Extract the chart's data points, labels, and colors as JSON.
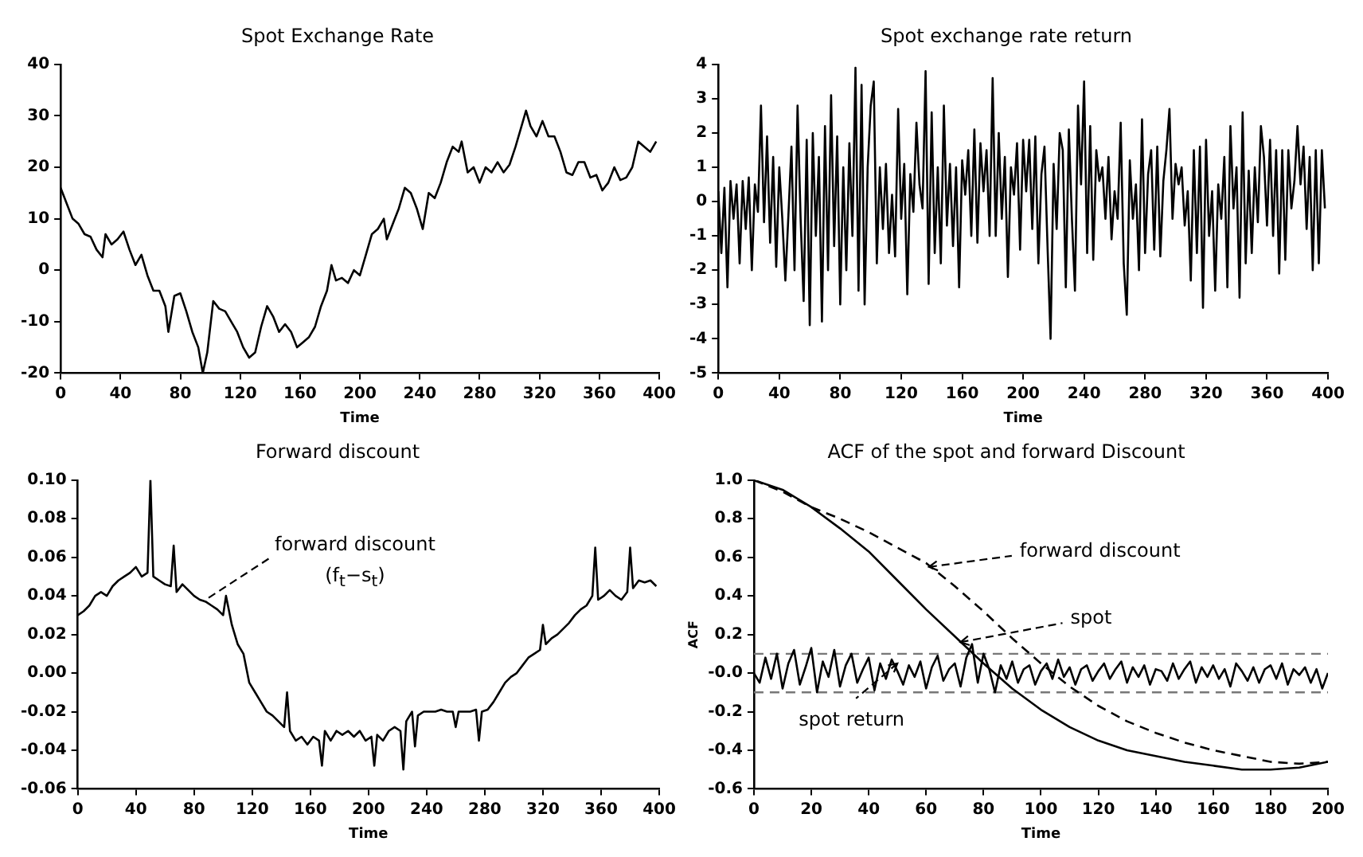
{
  "chart_data": [
    {
      "type": "line",
      "title": "Spot Exchange Rate",
      "xlabel": "Time",
      "xlim": [
        0,
        400
      ],
      "xticks": [
        0,
        40,
        80,
        120,
        160,
        200,
        240,
        280,
        320,
        360,
        400
      ],
      "ylim": [
        -20,
        40
      ],
      "yticks": [
        -20,
        -10,
        0,
        10,
        20,
        30,
        40
      ],
      "x": [
        0,
        4,
        8,
        12,
        16,
        20,
        24,
        28,
        30,
        34,
        38,
        42,
        46,
        50,
        54,
        58,
        62,
        66,
        70,
        72,
        76,
        80,
        84,
        88,
        92,
        95,
        98,
        102,
        106,
        110,
        114,
        118,
        122,
        126,
        130,
        134,
        138,
        142,
        146,
        150,
        154,
        158,
        162,
        166,
        170,
        174,
        178,
        181,
        184,
        188,
        192,
        196,
        200,
        204,
        208,
        212,
        216,
        218,
        222,
        226,
        230,
        234,
        238,
        242,
        246,
        250,
        254,
        258,
        262,
        266,
        268,
        272,
        276,
        280,
        284,
        288,
        292,
        296,
        300,
        304,
        308,
        311,
        314,
        318,
        322,
        326,
        330,
        334,
        338,
        342,
        346,
        350,
        354,
        358,
        362,
        366,
        370,
        374,
        378,
        382,
        386,
        390,
        394,
        398
      ],
      "series": [
        {
          "color": "#000000",
          "values": [
            16,
            13,
            10,
            9,
            7,
            6.5,
            4,
            2.5,
            7,
            5,
            6,
            7.5,
            4,
            1,
            3,
            -1,
            -4,
            -4,
            -7,
            -12,
            -5,
            -4.5,
            -8,
            -12,
            -15,
            -20,
            -16,
            -6,
            -7.5,
            -8,
            -10,
            -12,
            -15,
            -17,
            -16,
            -11,
            -7,
            -9,
            -12,
            -10.5,
            -12,
            -15,
            -14,
            -13,
            -11,
            -7,
            -4,
            1,
            -2,
            -1.5,
            -2.5,
            0,
            -1,
            3,
            7,
            8,
            10,
            6,
            9,
            12,
            16,
            15,
            12,
            8,
            15,
            14,
            17,
            21,
            24,
            23,
            25,
            19,
            20,
            17,
            20,
            19,
            21,
            19,
            20.5,
            24,
            28,
            31,
            28,
            26,
            29,
            26,
            26,
            23,
            19,
            18.5,
            21,
            21,
            18,
            18.5,
            15.5,
            17,
            20,
            17.5,
            18,
            20,
            25,
            24,
            23,
            25
          ]
        }
      ]
    },
    {
      "type": "line",
      "title": "Spot exchange rate return",
      "xlabel": "Time",
      "xlim": [
        0,
        400
      ],
      "xticks": [
        0,
        40,
        80,
        120,
        160,
        200,
        240,
        280,
        320,
        360,
        400
      ],
      "ylim": [
        -5,
        4
      ],
      "yticks": [
        -5,
        -4,
        -3,
        -2,
        -1,
        0,
        1,
        2,
        3,
        4
      ],
      "x": [
        0,
        2,
        4,
        6,
        8,
        10,
        12,
        14,
        16,
        18,
        20,
        22,
        24,
        26,
        28,
        30,
        32,
        34,
        36,
        38,
        40,
        42,
        44,
        46,
        48,
        50,
        52,
        54,
        56,
        58,
        60,
        62,
        64,
        66,
        68,
        70,
        72,
        74,
        76,
        78,
        80,
        82,
        84,
        86,
        88,
        90,
        92,
        94,
        96,
        98,
        100,
        102,
        104,
        106,
        108,
        110,
        112,
        114,
        116,
        118,
        120,
        122,
        124,
        126,
        128,
        130,
        132,
        134,
        136,
        138,
        140,
        142,
        144,
        146,
        148,
        150,
        152,
        154,
        156,
        158,
        160,
        162,
        164,
        166,
        168,
        170,
        172,
        174,
        176,
        178,
        180,
        182,
        184,
        186,
        188,
        190,
        192,
        194,
        196,
        198,
        200,
        202,
        204,
        206,
        208,
        210,
        212,
        214,
        216,
        218,
        220,
        222,
        224,
        226,
        228,
        230,
        232,
        234,
        236,
        238,
        240,
        242,
        244,
        246,
        248,
        250,
        252,
        254,
        256,
        258,
        260,
        262,
        264,
        266,
        268,
        270,
        272,
        274,
        276,
        278,
        280,
        282,
        284,
        286,
        288,
        290,
        292,
        294,
        296,
        298,
        300,
        302,
        304,
        306,
        308,
        310,
        312,
        314,
        316,
        318,
        320,
        322,
        324,
        326,
        328,
        330,
        332,
        334,
        336,
        338,
        340,
        342,
        344,
        346,
        348,
        350,
        352,
        354,
        356,
        358,
        360,
        362,
        364,
        366,
        368,
        370,
        372,
        374,
        376,
        378,
        380,
        382,
        384,
        386,
        388,
        390,
        392,
        394,
        396,
        398
      ],
      "series": [
        {
          "color": "#000000",
          "values": [
            0.3,
            -1.5,
            0.4,
            -2.5,
            0.6,
            -0.5,
            0.5,
            -1.8,
            0.6,
            -0.8,
            0.7,
            -2.0,
            0.5,
            -0.3,
            2.8,
            -0.6,
            1.9,
            -1.2,
            1.3,
            -1.9,
            1.0,
            -0.5,
            -2.3,
            -0.4,
            1.6,
            -2.0,
            2.8,
            -0.5,
            -2.9,
            1.8,
            -3.6,
            2.0,
            -1.0,
            1.3,
            -3.5,
            2.2,
            -2.0,
            3.1,
            -1.3,
            1.9,
            -3.0,
            1.0,
            -2.0,
            1.7,
            -1.0,
            3.9,
            -2.6,
            3.4,
            -3.0,
            1.0,
            2.8,
            3.5,
            -1.8,
            1.0,
            -0.8,
            1.1,
            -1.5,
            0.2,
            -1.6,
            2.7,
            -0.5,
            1.1,
            -2.7,
            0.8,
            -0.3,
            2.3,
            0.5,
            -0.2,
            3.8,
            -2.4,
            2.6,
            -1.5,
            1.0,
            -1.8,
            2.8,
            -0.7,
            1.1,
            -1.3,
            1.0,
            -2.5,
            1.2,
            0.2,
            1.5,
            -1.0,
            2.1,
            -1.2,
            1.7,
            0.3,
            1.5,
            -1.0,
            3.6,
            -1.0,
            2.0,
            -0.5,
            1.3,
            -2.2,
            1.0,
            0.2,
            1.7,
            -1.4,
            1.8,
            0.3,
            1.8,
            -0.8,
            1.9,
            -1.8,
            0.8,
            1.6,
            -1.3,
            -4.0,
            1.1,
            -0.8,
            2.0,
            1.5,
            -2.5,
            2.1,
            -0.5,
            -2.6,
            2.8,
            0.5,
            3.5,
            -1.5,
            2.2,
            -1.7,
            1.5,
            0.6,
            1.0,
            -0.5,
            1.3,
            -1.1,
            0.3,
            -0.5,
            2.3,
            -1.8,
            -3.3,
            1.2,
            -0.5,
            0.5,
            -2.0,
            2.4,
            -1.5,
            0.8,
            1.5,
            -1.4,
            1.6,
            -1.6,
            0.6,
            1.5,
            2.7,
            -0.5,
            1.1,
            0.5,
            1.0,
            -0.7,
            0.3,
            -2.3,
            1.5,
            -1.5,
            1.6,
            -3.1,
            1.8,
            -1.0,
            0.3,
            -2.6,
            0.5,
            -0.5,
            1.3,
            -2.5,
            2.2,
            -0.2,
            1.0,
            -2.8,
            2.6,
            -1.8,
            0.9,
            -1.5,
            1.0,
            -0.6,
            2.2,
            1.3,
            -0.7,
            1.8,
            -1.0,
            1.5,
            -2.1,
            1.5,
            -1.7,
            1.5,
            -0.2,
            0.6,
            2.2,
            0.5,
            1.6,
            -0.8,
            1.3,
            -2.0,
            1.5,
            -1.8,
            1.5,
            -0.2
          ]
        }
      ]
    },
    {
      "type": "line",
      "title": "Forward discount",
      "xlabel": "Time",
      "xlim": [
        0,
        400
      ],
      "xticks": [
        0,
        40,
        80,
        120,
        160,
        200,
        240,
        280,
        320,
        360,
        400
      ],
      "ylim": [
        -0.06,
        0.1
      ],
      "yticks": [
        -0.06,
        -0.04,
        -0.02,
        {
          "value": 0,
          "label": "0.00"
        },
        0.02,
        0.04,
        0.06,
        0.08,
        {
          "value": 0.1,
          "label": "0.10"
        }
      ],
      "annotations": [
        {
          "text": "forward discount",
          "x": 90,
          "y": 0.039
        },
        "(f$_{t}$−s$_{t}$)"
      ],
      "x": [
        0,
        4,
        8,
        12,
        16,
        20,
        24,
        28,
        32,
        36,
        40,
        44,
        48,
        50,
        52,
        56,
        60,
        64,
        66,
        68,
        72,
        76,
        80,
        84,
        88,
        92,
        96,
        100,
        102,
        106,
        110,
        114,
        118,
        122,
        126,
        130,
        134,
        138,
        142,
        144,
        146,
        150,
        154,
        158,
        162,
        166,
        168,
        170,
        174,
        178,
        182,
        186,
        190,
        194,
        198,
        202,
        204,
        206,
        210,
        214,
        218,
        222,
        224,
        226,
        230,
        232,
        234,
        238,
        242,
        246,
        250,
        254,
        258,
        260,
        262,
        266,
        270,
        274,
        276,
        278,
        282,
        286,
        290,
        294,
        298,
        302,
        306,
        310,
        314,
        318,
        320,
        322,
        326,
        330,
        334,
        338,
        342,
        346,
        350,
        354,
        356,
        358,
        362,
        366,
        370,
        374,
        378,
        380,
        382,
        386,
        390,
        394,
        398
      ],
      "series": [
        {
          "color": "#000000",
          "values": [
            0.03,
            0.032,
            0.035,
            0.04,
            0.042,
            0.04,
            0.045,
            0.048,
            0.05,
            0.052,
            0.055,
            0.05,
            0.052,
            0.1,
            0.05,
            0.048,
            0.046,
            0.045,
            0.066,
            0.042,
            0.046,
            0.043,
            0.04,
            0.038,
            0.037,
            0.035,
            0.033,
            0.03,
            0.04,
            0.025,
            0.015,
            0.01,
            -0.005,
            -0.01,
            -0.015,
            -0.02,
            -0.022,
            -0.025,
            -0.028,
            -0.01,
            -0.03,
            -0.035,
            -0.033,
            -0.037,
            -0.033,
            -0.035,
            -0.048,
            -0.03,
            -0.035,
            -0.03,
            -0.032,
            -0.03,
            -0.033,
            -0.03,
            -0.035,
            -0.033,
            -0.048,
            -0.032,
            -0.035,
            -0.03,
            -0.028,
            -0.03,
            -0.05,
            -0.025,
            -0.02,
            -0.038,
            -0.022,
            -0.02,
            -0.02,
            -0.02,
            -0.019,
            -0.02,
            -0.02,
            -0.028,
            -0.02,
            -0.02,
            -0.02,
            -0.019,
            -0.035,
            -0.02,
            -0.019,
            -0.015,
            -0.01,
            -0.005,
            -0.002,
            0.0,
            0.004,
            0.008,
            0.01,
            0.012,
            0.025,
            0.015,
            0.018,
            0.02,
            0.023,
            0.026,
            0.03,
            0.033,
            0.035,
            0.04,
            0.065,
            0.038,
            0.04,
            0.043,
            0.04,
            0.038,
            0.042,
            0.065,
            0.044,
            0.048,
            0.047,
            0.048,
            0.045
          ]
        }
      ]
    },
    {
      "type": "line",
      "title": "ACF of the spot and forward Discount",
      "xlabel": "Time",
      "ylabel": "ACF",
      "xlim": [
        0,
        200
      ],
      "xticks": [
        0,
        20,
        40,
        60,
        80,
        100,
        120,
        140,
        160,
        180,
        200
      ],
      "ylim": [
        -0.6,
        1.0
      ],
      "yticks": [
        -0.6,
        -0.4,
        -0.2,
        {
          "value": 0,
          "label": "-0.0"
        },
        0.2,
        0.4,
        0.6,
        0.8,
        {
          "value": 1,
          "label": "1.0"
        }
      ],
      "ref_lines": [
        {
          "axis": "y",
          "value": 0.1,
          "line_style": "dashed",
          "color": "#777777"
        },
        {
          "axis": "y",
          "value": -0.1,
          "line_style": "dashed",
          "color": "#777777"
        }
      ],
      "annotations": [
        {
          "text": "forward discount",
          "x": 61,
          "y": 0.55
        },
        {
          "text": "spot",
          "x": 72,
          "y": 0.16
        },
        {
          "text": "spot return",
          "x": 50,
          "y": 0.05
        }
      ],
      "series": [
        {
          "color": "#000000",
          "x": [
            0,
            10,
            20,
            30,
            40,
            50,
            60,
            70,
            80,
            90,
            100,
            110,
            120,
            130,
            140,
            150,
            160,
            170,
            180,
            190,
            200
          ],
          "values": [
            1.0,
            0.95,
            0.86,
            0.75,
            0.63,
            0.48,
            0.33,
            0.19,
            0.05,
            -0.08,
            -0.19,
            -0.28,
            -0.35,
            -0.4,
            -0.43,
            -0.46,
            -0.48,
            -0.5,
            -0.5,
            -0.49,
            -0.46
          ]
        },
        {
          "color": "#000000",
          "line_style": "dashed",
          "x": [
            0,
            10,
            20,
            30,
            40,
            50,
            60,
            70,
            80,
            90,
            100,
            110,
            120,
            130,
            140,
            150,
            160,
            170,
            180,
            190,
            200
          ],
          "values": [
            1.0,
            0.94,
            0.86,
            0.8,
            0.73,
            0.65,
            0.57,
            0.45,
            0.32,
            0.18,
            0.05,
            -0.07,
            -0.17,
            -0.25,
            -0.31,
            -0.36,
            -0.4,
            -0.43,
            -0.46,
            -0.47,
            -0.46
          ]
        },
        {
          "color": "#000000",
          "x": [
            0,
            2,
            4,
            6,
            8,
            10,
            12,
            14,
            16,
            18,
            20,
            22,
            24,
            26,
            28,
            30,
            32,
            34,
            36,
            38,
            40,
            42,
            44,
            46,
            48,
            50,
            52,
            54,
            56,
            58,
            60,
            62,
            64,
            66,
            68,
            70,
            72,
            74,
            76,
            78,
            80,
            82,
            84,
            86,
            88,
            90,
            92,
            94,
            96,
            98,
            100,
            102,
            104,
            106,
            108,
            110,
            112,
            114,
            116,
            118,
            120,
            122,
            124,
            126,
            128,
            130,
            132,
            134,
            136,
            138,
            140,
            142,
            144,
            146,
            148,
            150,
            152,
            154,
            156,
            158,
            160,
            162,
            164,
            166,
            168,
            170,
            172,
            174,
            176,
            178,
            180,
            182,
            184,
            186,
            188,
            190,
            192,
            194,
            196,
            198,
            200
          ],
          "values": [
            0.0,
            -0.05,
            0.08,
            -0.03,
            0.1,
            -0.08,
            0.05,
            0.12,
            -0.06,
            0.03,
            0.13,
            -0.1,
            0.06,
            -0.02,
            0.12,
            -0.07,
            0.04,
            0.1,
            -0.05,
            0.02,
            0.08,
            -0.09,
            0.05,
            -0.03,
            0.07,
            0.01,
            -0.06,
            0.04,
            -0.02,
            0.06,
            -0.08,
            0.03,
            0.09,
            -0.04,
            0.02,
            0.05,
            -0.07,
            0.08,
            0.15,
            -0.05,
            0.1,
            0.02,
            -0.1,
            0.04,
            -0.03,
            0.06,
            -0.05,
            0.02,
            0.04,
            -0.06,
            0.01,
            0.05,
            -0.03,
            0.07,
            -0.02,
            0.03,
            -0.06,
            0.02,
            0.04,
            -0.04,
            0.01,
            0.05,
            -0.03,
            0.02,
            0.06,
            -0.05,
            0.03,
            -0.02,
            0.04,
            -0.06,
            0.02,
            0.01,
            -0.04,
            0.05,
            -0.03,
            0.02,
            0.06,
            -0.05,
            0.03,
            -0.02,
            0.04,
            -0.03,
            0.02,
            -0.07,
            0.05,
            0.01,
            -0.04,
            0.03,
            -0.05,
            0.02,
            0.04,
            -0.03,
            0.05,
            -0.06,
            0.02,
            -0.01,
            0.03,
            -0.05,
            0.02,
            -0.08,
            0.0
          ]
        }
      ]
    }
  ]
}
